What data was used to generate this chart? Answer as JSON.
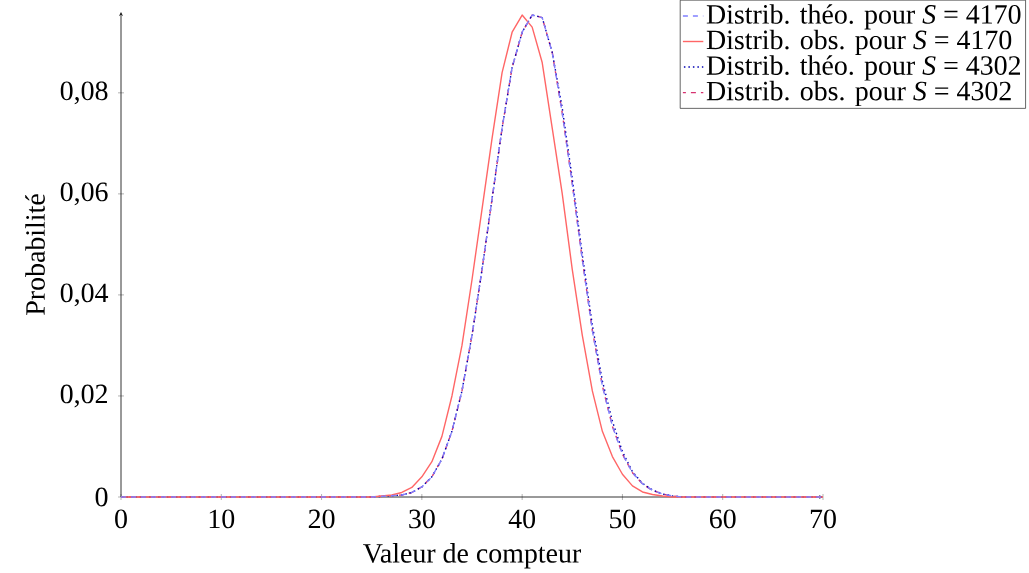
{
  "chart_data": {
    "type": "line",
    "xlabel": "Valeur de compteur",
    "ylabel": "Probabilité",
    "xlim": [
      0,
      70
    ],
    "ylim": [
      0,
      0.096
    ],
    "xticks": [
      0,
      10,
      20,
      30,
      40,
      50,
      60,
      70
    ],
    "yticks": [
      {
        "value": 0,
        "label": "0"
      },
      {
        "value": 0.02,
        "label": "0,02"
      },
      {
        "value": 0.04,
        "label": "0,04"
      },
      {
        "value": 0.06,
        "label": "0,06"
      },
      {
        "value": 0.08,
        "label": "0,08"
      }
    ],
    "grid": false,
    "legend": "top right",
    "marker": "none",
    "series": [
      {
        "name": "Distrib. théo. pour *S* = 4170",
        "color": "#8080ff",
        "line_style": "dashed",
        "x": [
          0,
          10,
          20,
          25,
          28,
          29,
          30,
          31,
          32,
          33,
          34,
          35,
          36,
          37,
          38,
          39,
          40,
          41,
          42,
          43,
          44,
          45,
          46,
          47,
          48,
          49,
          50,
          51,
          52,
          53,
          54,
          55,
          56,
          60,
          70
        ],
        "values": [
          0,
          0,
          0,
          0,
          0.0004,
          0.0009,
          0.002,
          0.004,
          0.0075,
          0.013,
          0.021,
          0.032,
          0.045,
          0.059,
          0.073,
          0.085,
          0.092,
          0.0954,
          0.0949,
          0.088,
          0.076,
          0.062,
          0.047,
          0.033,
          0.022,
          0.014,
          0.0085,
          0.0048,
          0.0026,
          0.0013,
          0.0006,
          0.0002,
          0,
          0,
          0
        ]
      },
      {
        "name": "Distrib. obs. pour *S* = 4170",
        "color": "#ff6666",
        "line_style": "solid",
        "x": [
          0,
          10,
          20,
          25,
          26,
          27,
          28,
          29,
          30,
          31,
          32,
          33,
          34,
          35,
          36,
          37,
          38,
          39,
          40,
          41,
          42,
          43,
          44,
          45,
          46,
          47,
          48,
          49,
          50,
          51,
          52,
          53,
          54,
          55,
          60,
          70
        ],
        "values": [
          0,
          0,
          0,
          0,
          0.0002,
          0.0004,
          0.0009,
          0.0019,
          0.004,
          0.007,
          0.012,
          0.02,
          0.03,
          0.043,
          0.057,
          0.071,
          0.084,
          0.092,
          0.0954,
          0.093,
          0.086,
          0.073,
          0.06,
          0.045,
          0.032,
          0.021,
          0.013,
          0.008,
          0.0045,
          0.0022,
          0.001,
          0.0005,
          0.0002,
          0,
          0,
          0
        ]
      },
      {
        "name": "Distrib. théo. pour *S* = 4302",
        "color": "#0000b3",
        "line_style": "dotted",
        "x": [
          0,
          10,
          20,
          25,
          28,
          29,
          30,
          31,
          32,
          33,
          34,
          35,
          36,
          37,
          38,
          39,
          40,
          41,
          42,
          43,
          44,
          45,
          46,
          47,
          48,
          49,
          50,
          51,
          52,
          53,
          54,
          55,
          56,
          60,
          70
        ],
        "values": [
          0,
          0,
          0,
          0,
          0.0004,
          0.0009,
          0.002,
          0.004,
          0.0075,
          0.013,
          0.021,
          0.032,
          0.045,
          0.059,
          0.073,
          0.085,
          0.092,
          0.0954,
          0.0949,
          0.088,
          0.077,
          0.063,
          0.048,
          0.034,
          0.023,
          0.015,
          0.009,
          0.005,
          0.0027,
          0.0014,
          0.0006,
          0.0002,
          0,
          0,
          0
        ]
      },
      {
        "name": "Distrib. obs. pour *S* = 4302",
        "color": "#d63370",
        "line_style": "dashed",
        "x": [
          0,
          10,
          20,
          25,
          28,
          29,
          30,
          31,
          32,
          33,
          34,
          35,
          36,
          37,
          38,
          39,
          40,
          41,
          42,
          43,
          44,
          45,
          46,
          47,
          48,
          49,
          50,
          51,
          52,
          53,
          54,
          55,
          56,
          60,
          70
        ],
        "values": [
          0,
          0,
          0,
          0,
          0.0004,
          0.0009,
          0.002,
          0.004,
          0.0075,
          0.013,
          0.021,
          0.032,
          0.045,
          0.059,
          0.073,
          0.085,
          0.092,
          0.0954,
          0.0949,
          0.088,
          0.076,
          0.062,
          0.047,
          0.033,
          0.022,
          0.014,
          0.0085,
          0.0048,
          0.0026,
          0.0013,
          0.0006,
          0.0002,
          0,
          0,
          0
        ]
      }
    ]
  }
}
